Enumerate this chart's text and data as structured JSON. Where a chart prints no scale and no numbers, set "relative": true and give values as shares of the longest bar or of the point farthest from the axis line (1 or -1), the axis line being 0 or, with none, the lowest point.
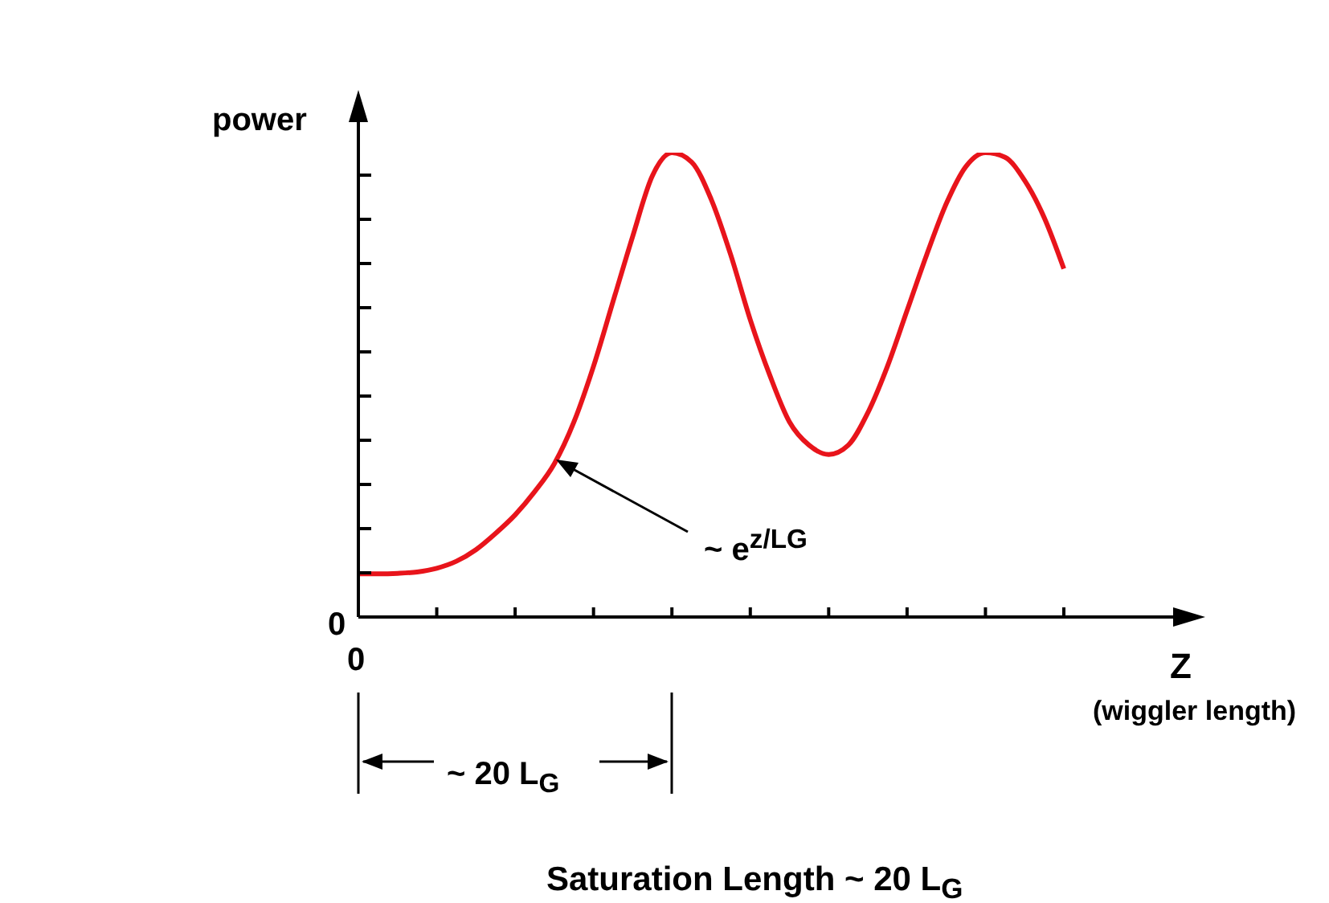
{
  "chart_data": {
    "type": "line",
    "relative": true,
    "ylabel": "power",
    "xlabel": "Z",
    "categories": [
      null,
      null,
      null,
      null,
      null,
      null,
      null,
      null,
      null,
      null,
      null,
      null,
      null,
      null,
      null,
      null,
      null,
      null,
      null,
      null,
      null,
      null,
      null,
      null,
      null,
      null,
      null,
      null,
      null,
      null,
      null,
      null,
      null,
      null,
      null,
      null,
      null
    ],
    "series": [
      {
        "color": "#e8141b",
        "values": [
          0.093,
          0.093,
          0.094,
          0.097,
          0.105,
          0.12,
          0.145,
          0.18,
          0.22,
          0.27,
          0.33,
          0.42,
          0.54,
          0.68,
          0.82,
          0.95,
          1.0,
          0.98,
          0.9,
          0.78,
          0.64,
          0.52,
          0.42,
          0.37,
          0.35,
          0.37,
          0.44,
          0.54,
          0.66,
          0.78,
          0.89,
          0.97,
          1.0,
          0.99,
          0.94,
          0.86,
          0.75
        ]
      }
    ],
    "marker": "none",
    "grid": false,
    "legend": false,
    "annotations": [
      "0",
      "0",
      "(wiggler length)",
      "~ e$^{z/LG}$",
      "~ 20 L$_{G}$",
      "Saturation Length ~ 20 L$_{G}$"
    ]
  }
}
